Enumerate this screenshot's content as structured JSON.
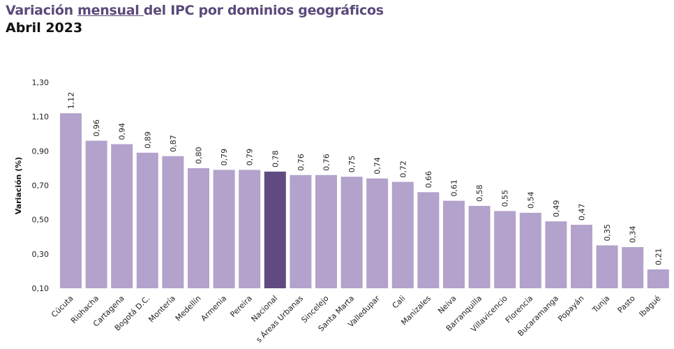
{
  "chart_data": {
    "type": "bar",
    "title_pre": "Variación ",
    "title_underlined": "mensual ",
    "title_post": "del IPC por dominios geográficos",
    "subtitle": "Abril 2023",
    "xlabel": "",
    "ylabel": "Variación (%)",
    "ylim": [
      0.1,
      1.3
    ],
    "yticks": [
      "0,10",
      "0,30",
      "0,50",
      "0,70",
      "0,90",
      "1,10",
      "1,30"
    ],
    "grid": false,
    "categories": [
      "Cúcuta",
      "Riohacha",
      "Cartagena",
      "Bogotá D.C.",
      "Montería",
      "Medellín",
      "Armenia",
      "Pereira",
      "Nacional",
      "s Áreas Urbanas",
      "Sincelejo",
      "Santa Marta",
      "Valledupar",
      "Cali",
      "Manizales",
      "Neiva",
      "Barranquilla",
      "Villavicencio",
      "Florencia",
      "Bucaramanga",
      "Popayán",
      "Tunja",
      "Pasto",
      "Ibagué"
    ],
    "values": [
      1.12,
      0.96,
      0.94,
      0.89,
      0.87,
      0.8,
      0.79,
      0.79,
      0.78,
      0.76,
      0.76,
      0.75,
      0.74,
      0.72,
      0.66,
      0.61,
      0.58,
      0.55,
      0.54,
      0.49,
      0.47,
      0.35,
      0.34,
      0.21
    ],
    "data_labels": [
      "1,12",
      "0,96",
      "0,94",
      "0,89",
      "0,87",
      "0,80",
      "0,79",
      "0,79",
      "0,78",
      "0,76",
      "0,76",
      "0,75",
      "0,74",
      "0,72",
      "0,66",
      "0,61",
      "0,58",
      "0,55",
      "0,54",
      "0,49",
      "0,47",
      "0,35",
      "0,34",
      "0,21"
    ],
    "highlight": "Nacional",
    "colors": {
      "bar": "#b3a2cc",
      "highlight": "#5f4b80",
      "title": "#5b4a7a"
    }
  }
}
